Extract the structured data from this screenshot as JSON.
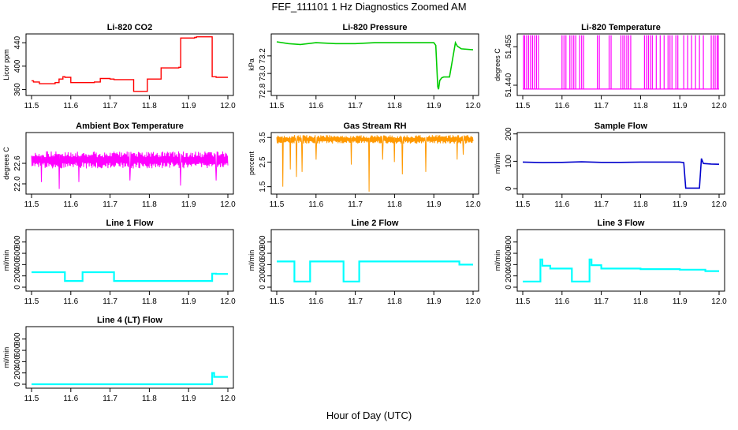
{
  "page": {
    "title": "FEF_111101  1 Hz Diagnostics Zoomed AM",
    "xlabel": "Hour of Day (UTC)"
  },
  "chart_data": [
    {
      "type": "line",
      "title": "Li-820 CO2",
      "ylabel": "Licor ppm",
      "color": "#ff0000",
      "render": "step",
      "xlim": [
        11.5,
        12.0
      ],
      "xticks": [
        11.5,
        11.6,
        11.7,
        11.8,
        11.9,
        12.0
      ],
      "ylim": [
        350,
        455
      ],
      "yticks": [
        360,
        400,
        440
      ],
      "yticklabels": [
        "360",
        "400",
        "440"
      ],
      "series": [
        {
          "x": [
            11.5,
            11.505,
            11.52,
            11.56,
            11.57,
            11.58,
            11.585,
            11.6,
            11.66,
            11.675,
            11.7,
            11.71,
            11.76,
            11.78,
            11.795,
            11.81,
            11.83,
            11.875,
            11.88,
            11.915,
            11.92,
            11.955,
            11.96,
            11.97,
            12.0
          ],
          "y": [
            375,
            373,
            370,
            372,
            378,
            382,
            381,
            372,
            373,
            379,
            378,
            377,
            357,
            357,
            378,
            378,
            397,
            398,
            448,
            449,
            450,
            450,
            382,
            381,
            381
          ]
        }
      ]
    },
    {
      "type": "line",
      "title": "Li-820 Pressure",
      "ylabel": "kPa",
      "color": "#00cc00",
      "render": "line",
      "xlim": [
        11.5,
        12.0
      ],
      "xticks": [
        11.5,
        11.6,
        11.7,
        11.8,
        11.9,
        12.0
      ],
      "ylim": [
        72.75,
        73.45
      ],
      "yticks": [
        72.8,
        73.0,
        73.2
      ],
      "yticklabels": [
        "72.8",
        "73.0",
        "73.2"
      ],
      "series": [
        {
          "x": [
            11.5,
            11.53,
            11.56,
            11.6,
            11.65,
            11.7,
            11.75,
            11.8,
            11.85,
            11.9,
            11.905,
            11.91,
            11.912,
            11.915,
            11.92,
            11.925,
            11.94,
            11.955,
            11.96,
            11.97,
            12.0
          ],
          "y": [
            73.36,
            73.34,
            73.33,
            73.35,
            73.34,
            73.34,
            73.35,
            73.35,
            73.35,
            73.35,
            73.32,
            72.85,
            72.82,
            72.92,
            72.95,
            72.96,
            72.96,
            73.35,
            73.31,
            73.28,
            73.27
          ]
        }
      ]
    },
    {
      "type": "line",
      "title": "Li-820 Temperature",
      "ylabel": "degrees C",
      "color": "#ff00ff",
      "render": "spikes",
      "xlim": [
        11.5,
        12.0
      ],
      "xticks": [
        11.5,
        11.6,
        11.7,
        11.8,
        11.9,
        12.0
      ],
      "ylim": [
        51.436,
        51.46
      ],
      "yticks": [
        51.44,
        51.455
      ],
      "yticklabels": [
        "51.440",
        "51.455"
      ],
      "base": 51.4385,
      "top": 51.4595,
      "spikes": [
        11.502,
        11.505,
        11.51,
        11.515,
        11.52,
        11.525,
        11.53,
        11.535,
        11.54,
        11.6,
        11.605,
        11.61,
        11.62,
        11.625,
        11.63,
        11.635,
        11.645,
        11.65,
        11.655,
        11.69,
        11.695,
        11.72,
        11.725,
        11.75,
        11.755,
        11.76,
        11.765,
        11.77,
        11.775,
        11.81,
        11.815,
        11.82,
        11.825,
        11.83,
        11.84,
        11.85,
        11.86,
        11.87,
        11.875,
        11.88,
        11.89,
        11.895,
        11.91,
        11.92,
        11.93,
        11.94,
        11.95,
        11.96,
        11.98,
        11.985,
        11.99,
        11.995,
        11.998
      ]
    },
    {
      "type": "line",
      "title": "Ambient Box Temperature",
      "ylabel": "degrees C",
      "color": "#ff00ff",
      "render": "noise",
      "xlim": [
        11.5,
        12.0
      ],
      "xticks": [
        11.5,
        11.6,
        11.7,
        11.8,
        11.9,
        12.0
      ],
      "ylim": [
        21.7,
        23.5
      ],
      "yticks": [
        22.0,
        22.6
      ],
      "yticklabels": [
        "22.0",
        "22.6"
      ],
      "low": 22.45,
      "high": 22.95,
      "dips": [
        [
          11.525,
          22.05
        ],
        [
          11.57,
          21.85
        ],
        [
          11.62,
          22.05
        ],
        [
          11.75,
          22.1
        ],
        [
          11.88,
          21.95
        ],
        [
          11.97,
          22.1
        ]
      ]
    },
    {
      "type": "line",
      "title": "Gas Stream RH",
      "ylabel": "percent",
      "color": "#ff9900",
      "render": "noise",
      "xlim": [
        11.5,
        12.0
      ],
      "xticks": [
        11.5,
        11.6,
        11.7,
        11.8,
        11.9,
        12.0
      ],
      "ylim": [
        1.2,
        3.7
      ],
      "yticks": [
        1.5,
        2.5,
        3.5
      ],
      "yticklabels": [
        "1.5",
        "2.5",
        "3.5"
      ],
      "low": 3.25,
      "high": 3.6,
      "dips": [
        [
          11.515,
          1.5
        ],
        [
          11.535,
          2.2
        ],
        [
          11.55,
          1.9
        ],
        [
          11.565,
          2.1
        ],
        [
          11.6,
          2.6
        ],
        [
          11.69,
          2.4
        ],
        [
          11.735,
          1.3
        ],
        [
          11.77,
          2.6
        ],
        [
          11.8,
          2.5
        ],
        [
          11.82,
          2.0
        ],
        [
          11.88,
          2.1
        ],
        [
          11.96,
          2.6
        ],
        [
          11.975,
          2.8
        ]
      ]
    },
    {
      "type": "line",
      "title": "Sample Flow",
      "ylabel": "ml/min",
      "color": "#0000cc",
      "render": "line",
      "xlim": [
        11.5,
        12.0
      ],
      "xticks": [
        11.5,
        11.6,
        11.7,
        11.8,
        11.9,
        12.0
      ],
      "ylim": [
        -20,
        205
      ],
      "yticks": [
        0,
        100,
        200
      ],
      "yticklabels": [
        "0",
        "100",
        "200"
      ],
      "series": [
        {
          "x": [
            11.5,
            11.55,
            11.6,
            11.65,
            11.7,
            11.75,
            11.8,
            11.85,
            11.9,
            11.91,
            11.915,
            11.95,
            11.955,
            11.96,
            11.98,
            12.0
          ],
          "y": [
            97,
            95,
            96,
            98,
            96,
            96,
            97,
            97,
            97,
            95,
            2,
            2,
            110,
            92,
            90,
            89
          ]
        }
      ]
    },
    {
      "type": "line",
      "title": "Line 1 Flow",
      "ylabel": "ml/min",
      "color": "#00ffff",
      "render": "step",
      "xlim": [
        11.5,
        12.0
      ],
      "xticks": [
        11.5,
        11.6,
        11.7,
        11.8,
        11.9,
        12.0
      ],
      "ylim": [
        -70,
        1020
      ],
      "yticks": [
        0,
        200,
        400,
        600,
        800
      ],
      "yticklabels": [
        "0",
        "200",
        "400",
        "600",
        "800"
      ],
      "series": [
        {
          "x": [
            11.5,
            11.58,
            11.585,
            11.625,
            11.63,
            11.705,
            11.71,
            11.955,
            11.96,
            11.97,
            12.0
          ],
          "y": [
            265,
            265,
            110,
            110,
            265,
            265,
            110,
            110,
            240,
            235,
            235
          ]
        }
      ]
    },
    {
      "type": "line",
      "title": "Line 2 Flow",
      "ylabel": "ml/min",
      "color": "#00ffff",
      "render": "step",
      "xlim": [
        11.5,
        12.0
      ],
      "xticks": [
        11.5,
        11.6,
        11.7,
        11.8,
        11.9,
        12.0
      ],
      "ylim": [
        -70,
        1020
      ],
      "yticks": [
        0,
        200,
        400,
        600,
        800
      ],
      "yticklabels": [
        "0",
        "200",
        "400",
        "600",
        "800"
      ],
      "series": [
        {
          "x": [
            11.5,
            11.54,
            11.545,
            11.58,
            11.585,
            11.665,
            11.67,
            11.705,
            11.71,
            11.96,
            11.965,
            12.0
          ],
          "y": [
            455,
            455,
            100,
            100,
            455,
            455,
            100,
            100,
            455,
            455,
            400,
            400
          ]
        }
      ]
    },
    {
      "type": "line",
      "title": "Line 3 Flow",
      "ylabel": "ml/min",
      "color": "#00ffff",
      "render": "step",
      "xlim": [
        11.5,
        12.0
      ],
      "xticks": [
        11.5,
        11.6,
        11.7,
        11.8,
        11.9,
        12.0
      ],
      "ylim": [
        -70,
        1020
      ],
      "yticks": [
        0,
        200,
        400,
        600,
        800
      ],
      "yticklabels": [
        "0",
        "200",
        "400",
        "600",
        "800"
      ],
      "series": [
        {
          "x": [
            11.5,
            11.54,
            11.545,
            11.55,
            11.57,
            11.62,
            11.625,
            11.665,
            11.67,
            11.675,
            11.7,
            11.8,
            11.9,
            11.96,
            11.965,
            12.0
          ],
          "y": [
            100,
            100,
            490,
            380,
            330,
            330,
            100,
            100,
            490,
            390,
            330,
            320,
            310,
            310,
            285,
            285
          ]
        }
      ]
    },
    {
      "type": "line",
      "title": "Line 4 (LT) Flow",
      "ylabel": "ml/min",
      "color": "#00ffff",
      "render": "step",
      "xlim": [
        11.5,
        12.0
      ],
      "xticks": [
        11.5,
        11.6,
        11.7,
        11.8,
        11.9,
        12.0
      ],
      "ylim": [
        -70,
        1020
      ],
      "yticks": [
        0,
        200,
        400,
        600,
        800
      ],
      "yticklabels": [
        "0",
        "200",
        "400",
        "600",
        "800"
      ],
      "series": [
        {
          "x": [
            11.5,
            11.955,
            11.96,
            11.965,
            12.0
          ],
          "y": [
            0,
            0,
            200,
            130,
            130
          ]
        }
      ]
    }
  ]
}
